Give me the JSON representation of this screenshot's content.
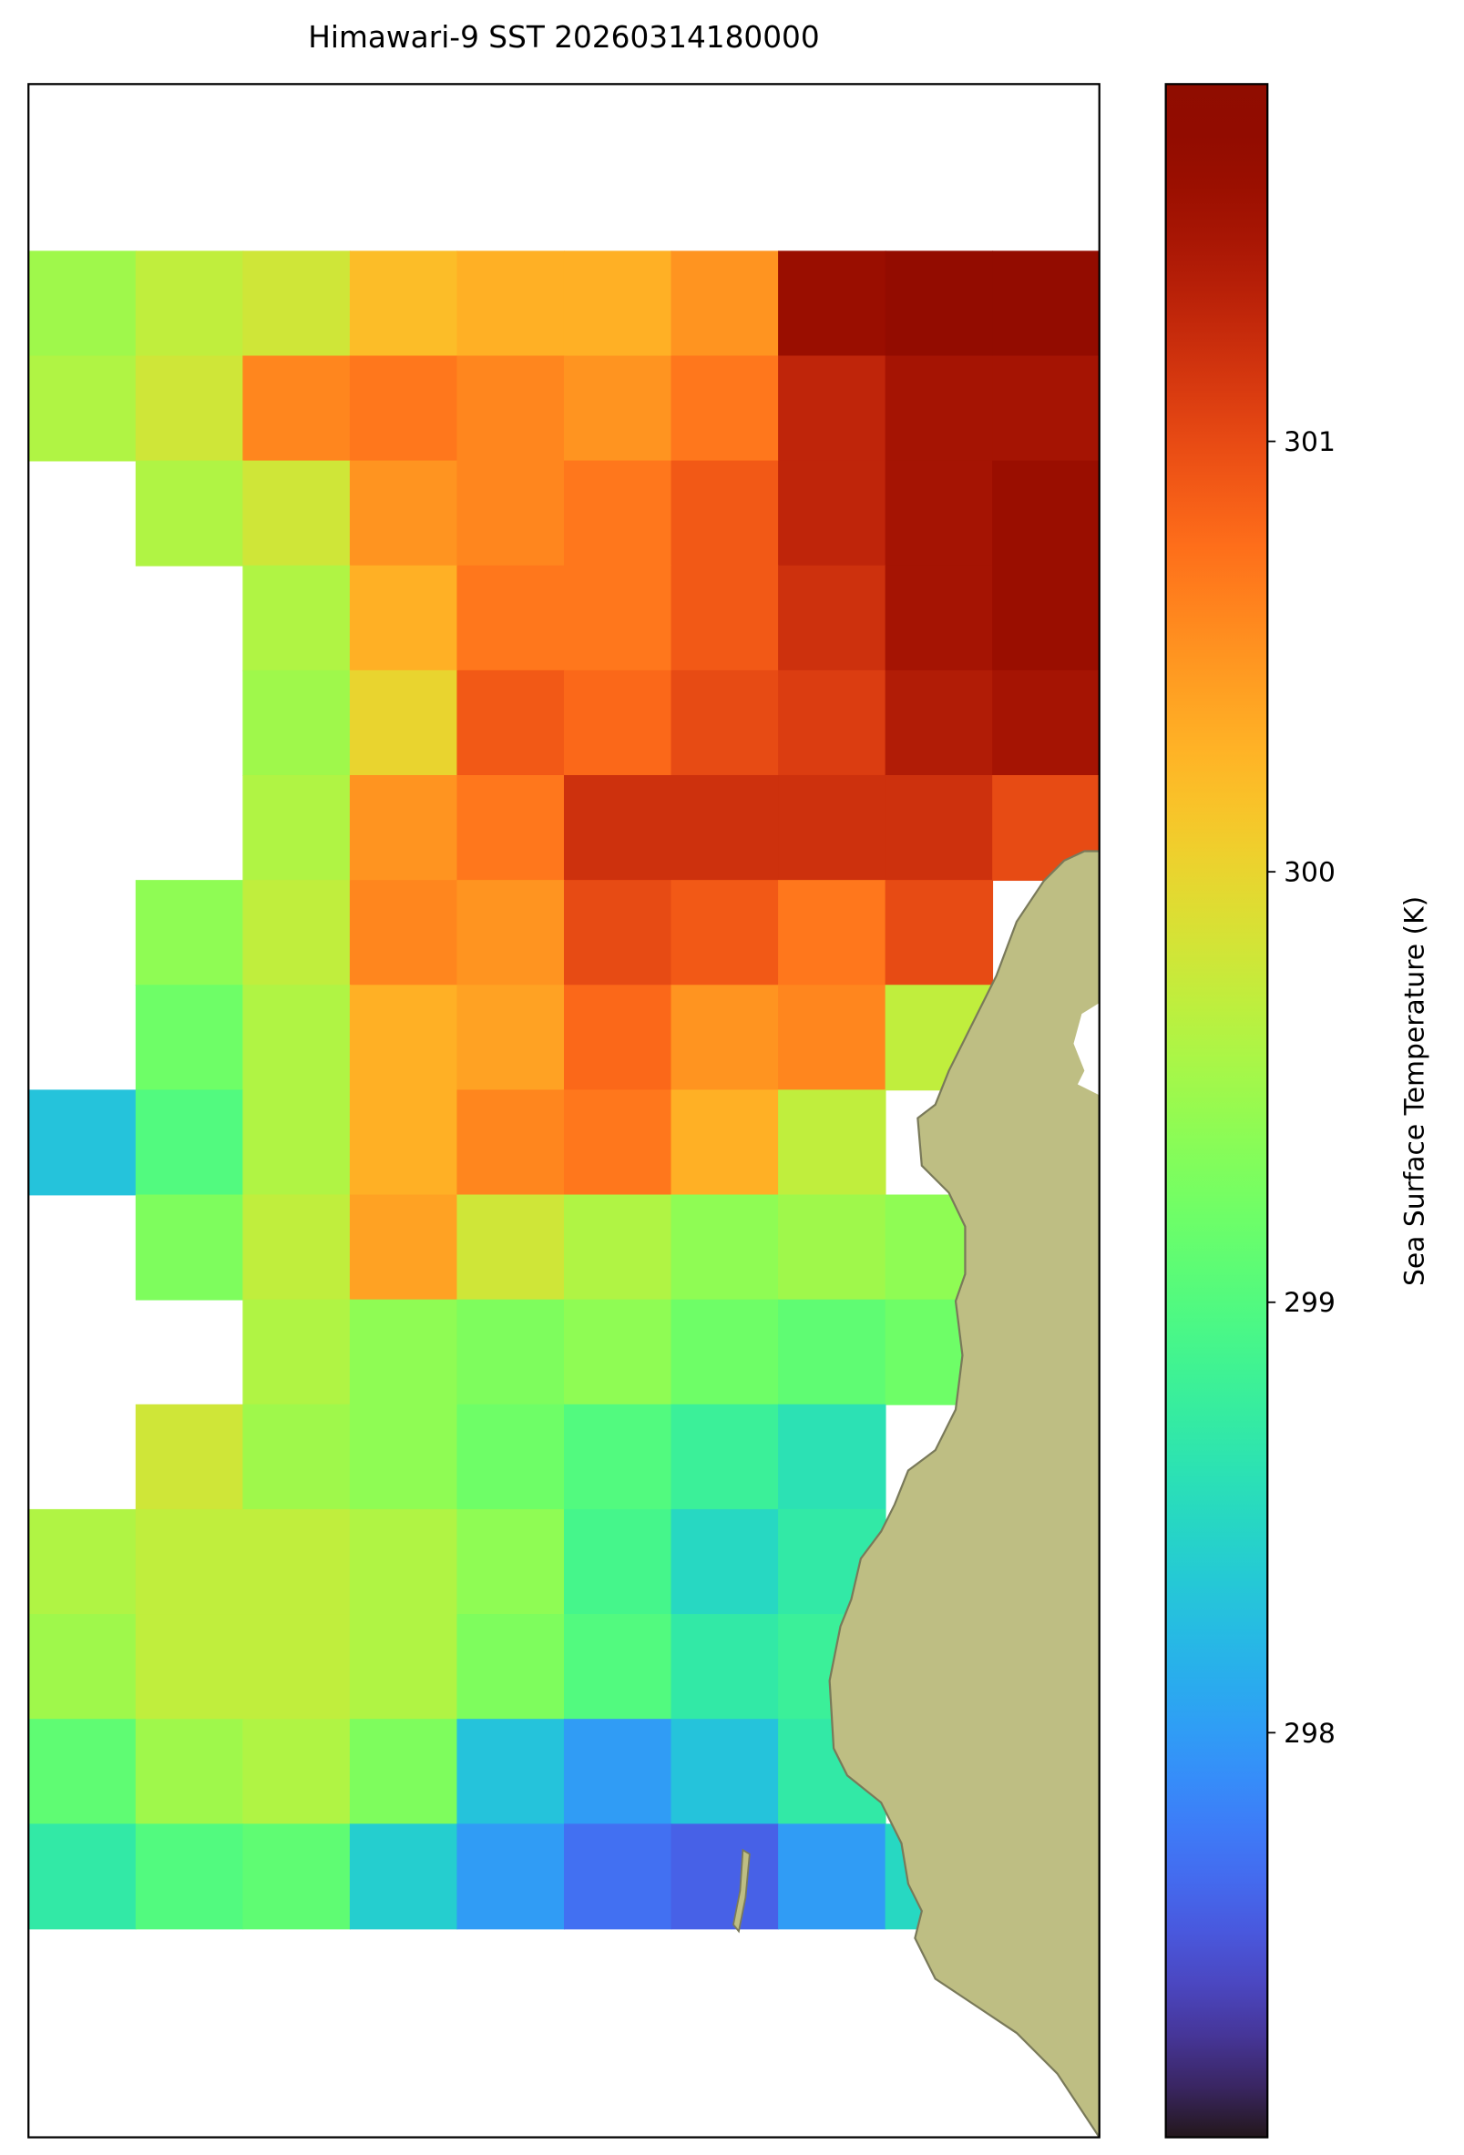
{
  "chart_data": {
    "type": "heatmap",
    "title": "Himawari-9 SST 20260314180000",
    "colorbar_label": "Sea Surface Temperature (K)",
    "colormap": "turbo",
    "clim": [
      297.06,
      301.83
    ],
    "cticks": [
      298,
      299,
      300,
      301
    ],
    "z": [
      [
        299.5,
        299.7,
        299.8,
        300.2,
        300.3,
        300.3,
        300.5,
        301.6,
        301.7,
        301.7
      ],
      [
        299.6,
        299.8,
        300.6,
        300.7,
        300.6,
        300.5,
        300.7,
        301.3,
        301.5,
        301.5
      ],
      [
        null,
        299.6,
        299.8,
        300.5,
        300.6,
        300.7,
        300.9,
        301.3,
        301.5,
        301.6
      ],
      [
        null,
        null,
        299.6,
        300.3,
        300.7,
        300.7,
        300.9,
        301.2,
        301.5,
        301.6
      ],
      [
        null,
        null,
        299.5,
        300.0,
        300.9,
        300.8,
        301.0,
        301.1,
        301.4,
        301.5
      ],
      [
        null,
        null,
        299.6,
        300.5,
        300.7,
        301.2,
        301.2,
        301.2,
        301.2,
        301.0
      ],
      [
        null,
        299.4,
        299.7,
        300.6,
        300.5,
        301.0,
        300.9,
        300.7,
        301.0,
        null
      ],
      [
        null,
        299.2,
        299.6,
        300.3,
        300.4,
        300.8,
        300.5,
        300.6,
        299.7,
        null
      ],
      [
        298.3,
        299.0,
        299.6,
        300.3,
        300.6,
        300.7,
        300.3,
        299.7,
        null,
        null
      ],
      [
        null,
        299.3,
        299.7,
        300.4,
        299.8,
        299.6,
        299.4,
        299.5,
        299.4,
        null
      ],
      [
        null,
        null,
        299.6,
        299.4,
        299.3,
        299.4,
        299.2,
        299.1,
        299.2,
        null
      ],
      [
        null,
        299.8,
        299.5,
        299.4,
        299.2,
        299.0,
        298.8,
        298.6,
        null,
        null
      ],
      [
        299.6,
        299.7,
        299.7,
        299.6,
        299.4,
        298.9,
        298.5,
        298.7,
        null,
        null
      ],
      [
        299.5,
        299.7,
        299.7,
        299.6,
        299.3,
        299.0,
        298.7,
        298.8,
        null,
        null
      ],
      [
        299.1,
        299.5,
        299.6,
        299.3,
        298.3,
        298.0,
        298.3,
        298.7,
        null,
        null
      ],
      [
        298.7,
        299.0,
        299.1,
        298.4,
        298.0,
        297.7,
        297.6,
        298.0,
        298.5,
        null
      ]
    ]
  }
}
